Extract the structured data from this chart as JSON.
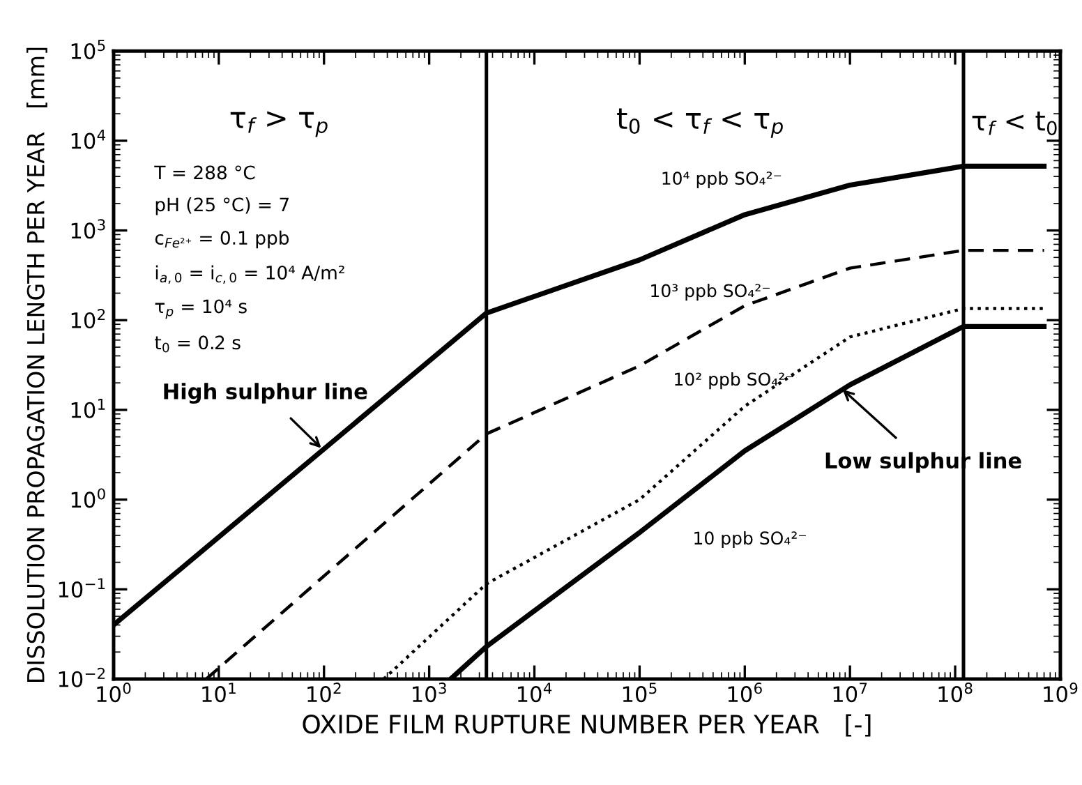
{
  "chart_data": {
    "type": "line",
    "xlabel": "OXIDE FILM RUPTURE NUMBER PER YEAR   [-]",
    "ylabel": "DISSOLUTION PROPAGATION LENGTH PER YEAR   [mm]",
    "log": "xy",
    "xlim": [
      1,
      1000000000
    ],
    "ylim": [
      0.01,
      100000
    ],
    "xticks": [
      {
        "value": 1,
        "label": "10$^{0}$"
      },
      {
        "value": 10,
        "label": "10$^{1}$"
      },
      {
        "value": 100,
        "label": "10$^{2}$"
      },
      {
        "value": 1000,
        "label": "10$^{3}$"
      },
      {
        "value": 10000,
        "label": "10$^{4}$"
      },
      {
        "value": 100000,
        "label": "10$^{5}$"
      },
      {
        "value": 1000000,
        "label": "10$^{6}$"
      },
      {
        "value": 10000000,
        "label": "10$^{7}$"
      },
      {
        "value": 100000000,
        "label": "10$^{8}$"
      },
      {
        "value": 1000000000,
        "label": "10$^{9}$"
      }
    ],
    "yticks": [
      {
        "value": 0.01,
        "label": "10$^{−2}$"
      },
      {
        "value": 0.1,
        "label": "10$^{−1}$"
      },
      {
        "value": 1,
        "label": "10$^{0}$"
      },
      {
        "value": 10,
        "label": "10$^{1}$"
      },
      {
        "value": 100,
        "label": "10$^{2}$"
      },
      {
        "value": 1000,
        "label": "10$^{3}$"
      },
      {
        "value": 10000,
        "label": "10$^{4}$"
      },
      {
        "value": 100000,
        "label": "10$^{5}$"
      }
    ],
    "grid": false,
    "legend": false,
    "series": [
      {
        "color": "#000000",
        "line_style": "solid",
        "x": [
          1,
          3500,
          100000,
          1000000,
          10000000,
          120000000,
          700000000
        ],
        "values": [
          0.04,
          120,
          470,
          1500,
          3200,
          5200,
          5200
        ]
      },
      {
        "color": "#000000",
        "line_style": "dashed",
        "x": [
          7.6,
          3500,
          100000,
          1000000,
          10000000,
          120000000,
          700000000
        ],
        "values": [
          0.01,
          5.4,
          31,
          145,
          380,
          600,
          600
        ]
      },
      {
        "color": "#000000",
        "line_style": "dotted",
        "x": [
          370,
          3500,
          100000,
          1000000,
          10000000,
          120000000,
          700000000
        ],
        "values": [
          0.01,
          0.115,
          1.0,
          11,
          65,
          135,
          135
        ]
      },
      {
        "color": "#000000",
        "line_style": "solid",
        "x": [
          1600,
          3500,
          100000,
          1000000,
          10000000,
          120000000,
          700000000
        ],
        "values": [
          0.01,
          0.023,
          0.43,
          3.5,
          19,
          85,
          85
        ]
      }
    ],
    "ref_lines": [
      {
        "axis": "x",
        "value": 3500,
        "color": "#000000"
      },
      {
        "axis": "x",
        "value": 120000000,
        "color": "#000000"
      }
    ],
    "annotations": [
      "τ$_{f}$ > τ$_{p}$",
      "t$_{0}$ < τ$_{f}$ < τ$_{p}$",
      "τ$_{f}$ < t$_{0}$",
      "T = 288 °C",
      "pH (25 °C) = 7",
      "c$_{Fe²⁺}$ = 0.1 ppb",
      "i$_{a,0}$ = i$_{c,0}$ = 10⁴ A/m²",
      "τ$_{p}$ = 10⁴ s",
      "t$_{0}$ = 0.2 s",
      "10⁴ ppb SO₄²⁻",
      "10³ ppb SO₄²⁻",
      "10² ppb SO₄²⁻",
      "10 ppb SO₄²⁻",
      {
        "text": "High sulphur line",
        "x": 100,
        "y": 3.5
      },
      {
        "text": "Low sulphur line",
        "x": 8000000,
        "y": 18
      }
    ]
  }
}
